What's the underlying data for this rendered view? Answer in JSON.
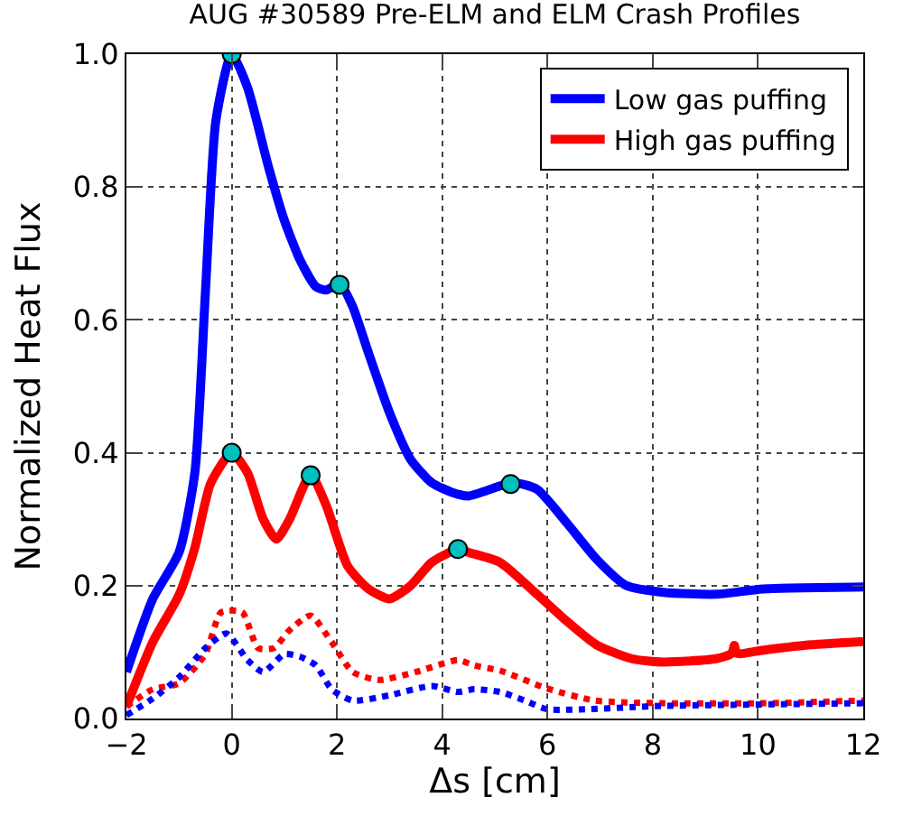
{
  "chart_data": {
    "type": "line",
    "title": "AUG #30589 Pre-ELM and ELM Crash Profiles",
    "xlabel": "Δs [cm]",
    "ylabel": "Normalized Heat Flux",
    "xlim": [
      -2,
      12
    ],
    "xticks": [
      {
        "value": -2,
        "label": "−2"
      },
      0,
      2,
      4,
      6,
      8,
      10,
      12
    ],
    "ylim": [
      0,
      1
    ],
    "yticks": [
      {
        "value": 0,
        "label": "0.0"
      },
      {
        "value": 0.2,
        "label": "0.2"
      },
      {
        "value": 0.4,
        "label": "0.4"
      },
      {
        "value": 0.6,
        "label": "0.6"
      },
      {
        "value": 0.8,
        "label": "0.8"
      },
      {
        "value": 1,
        "label": "1.0"
      }
    ],
    "grid": true,
    "legend": "top right",
    "series": [
      {
        "name": "Low gas puffing",
        "color": "#0000ff",
        "line_style": "solid",
        "x": [
          -2,
          -1.5,
          -1,
          -0.7,
          -0.5,
          -0.3,
          0,
          0.3,
          0.7,
          1,
          1.3,
          1.6,
          1.8,
          2.05,
          2.3,
          2.6,
          3,
          3.4,
          3.8,
          4.2,
          4.5,
          5.34,
          5.8,
          6.36,
          6.93,
          7.5,
          8.2,
          9.2,
          10.1,
          12
        ],
        "values": [
          0.07,
          0.18,
          0.25,
          0.37,
          0.64,
          0.9,
          1.0,
          0.95,
          0.83,
          0.75,
          0.69,
          0.65,
          0.645,
          0.655,
          0.62,
          0.55,
          0.46,
          0.39,
          0.355,
          0.34,
          0.335,
          0.355,
          0.345,
          0.295,
          0.24,
          0.2,
          0.19,
          0.187,
          0.195,
          0.198
        ]
      },
      {
        "name": "High gas puffing",
        "color": "#ff0000",
        "line_style": "solid",
        "x": [
          -2,
          -1.5,
          -1,
          -0.7,
          -0.4,
          0,
          0.3,
          0.6,
          0.85,
          1.1,
          1.5,
          1.8,
          2.2,
          2.6,
          3,
          3.4,
          3.8,
          4.3,
          4.5,
          5.1,
          5.8,
          6.36,
          6.93,
          7.6,
          8.2,
          9.2,
          9.5,
          9.55,
          9.6,
          10.1,
          11,
          12
        ],
        "values": [
          0.018,
          0.115,
          0.186,
          0.257,
          0.354,
          0.4,
          0.37,
          0.3,
          0.27,
          0.3,
          0.367,
          0.32,
          0.23,
          0.195,
          0.18,
          0.2,
          0.235,
          0.255,
          0.25,
          0.235,
          0.187,
          0.147,
          0.111,
          0.09,
          0.085,
          0.09,
          0.098,
          0.11,
          0.098,
          0.103,
          0.111,
          0.116
        ]
      },
      {
        "color": "#ff0000",
        "line_style": "dotted",
        "x": [
          -2,
          -1.5,
          -1,
          -0.5,
          -0.2,
          0.2,
          0.5,
          0.8,
          1.1,
          1.5,
          1.9,
          2.3,
          2.8,
          3.5,
          4.3,
          4.6,
          5.1,
          6,
          6.9,
          8.2,
          10.1,
          12
        ],
        "values": [
          0.018,
          0.044,
          0.053,
          0.097,
          0.16,
          0.16,
          0.106,
          0.106,
          0.133,
          0.155,
          0.115,
          0.07,
          0.058,
          0.07,
          0.088,
          0.08,
          0.072,
          0.045,
          0.027,
          0.023,
          0.023,
          0.027
        ]
      },
      {
        "color": "#0000ff",
        "line_style": "dotted",
        "x": [
          -2,
          -1.5,
          -1,
          -0.5,
          -0.1,
          0.3,
          0.6,
          1,
          1.3,
          1.6,
          1.9,
          2.3,
          3,
          3.8,
          4.3,
          4.6,
          5.1,
          5.57,
          6,
          8.2,
          12
        ],
        "values": [
          0.005,
          0.03,
          0.062,
          0.106,
          0.128,
          0.088,
          0.07,
          0.097,
          0.093,
          0.08,
          0.044,
          0.027,
          0.035,
          0.049,
          0.04,
          0.044,
          0.04,
          0.027,
          0.014,
          0.019,
          0.023
        ]
      },
      {
        "type": "scatter",
        "marker": "circle",
        "color": "#00bfbf",
        "x": [
          0,
          2.05,
          5.3,
          0,
          1.5,
          4.3
        ],
        "values": [
          1.0,
          0.653,
          0.353,
          0.4,
          0.366,
          0.255
        ]
      }
    ]
  }
}
